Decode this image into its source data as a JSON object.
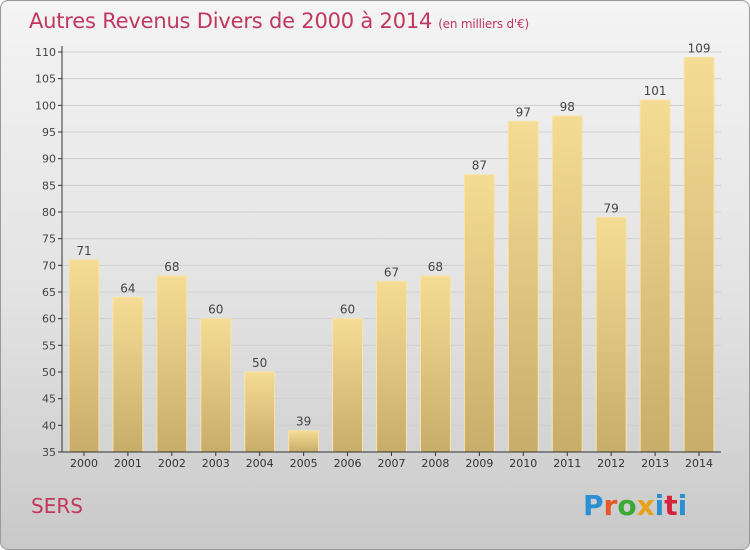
{
  "title": "Autres Revenus Divers de 2000 à 2014",
  "subtitle": "(en milliers d'€)",
  "place": "SERS",
  "logo_text": "Proxiti",
  "logo_colors": [
    "#2b8fd4",
    "#e35a2a",
    "#3aaa35",
    "#e8a11b",
    "#2b8fd4",
    "#d6223b",
    "#2b8fd4"
  ],
  "colors": {
    "title": "#c0375f",
    "bar_light": "#f5dc94",
    "bar_dark": "#c8ad6a",
    "axis": "#333333",
    "grid": "#cfcfcf"
  },
  "chart_data": {
    "type": "bar",
    "categories": [
      "2000",
      "2001",
      "2002",
      "2003",
      "2004",
      "2005",
      "2006",
      "2007",
      "2008",
      "2009",
      "2010",
      "2011",
      "2012",
      "2013",
      "2014"
    ],
    "values": [
      71,
      64,
      68,
      60,
      50,
      39,
      60,
      67,
      68,
      87,
      97,
      98,
      79,
      101,
      109
    ],
    "ylim": [
      35,
      110
    ],
    "yticks": [
      35,
      40,
      45,
      50,
      55,
      60,
      65,
      70,
      75,
      80,
      85,
      90,
      95,
      100,
      105,
      110
    ],
    "grid": true
  }
}
